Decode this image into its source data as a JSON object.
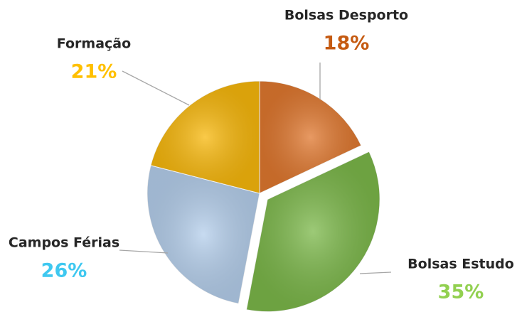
{
  "chart_data": {
    "type": "pie",
    "categories": [
      "Bolsas Desporto",
      "Bolsas Estudo",
      "Campos Férias",
      "Formação"
    ],
    "values": [
      18,
      35,
      26,
      21
    ],
    "value_labels": [
      "18%",
      "35%",
      "26%",
      "21%"
    ],
    "colors": [
      "#e0782f",
      "#7cb84a",
      "#b5cfec",
      "#f8b80c"
    ],
    "label_colors": [
      "#c55a11",
      "#92d050",
      "#3fc8f0",
      "#ffc000"
    ]
  }
}
